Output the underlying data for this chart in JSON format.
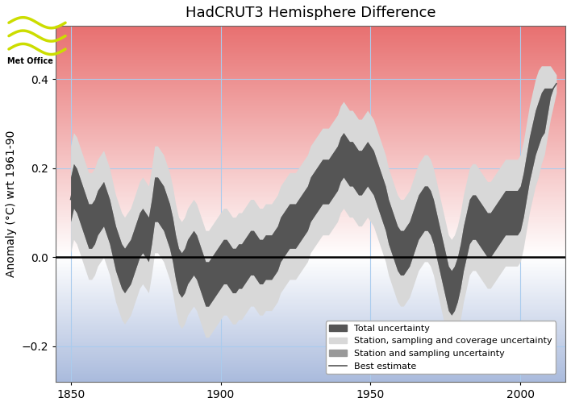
{
  "title": "HadCRUT3 Hemisphere Difference",
  "ylabel": "Anomaly (°C) wrt 1961-90",
  "xlim": [
    1845,
    2015
  ],
  "ylim": [
    -0.28,
    0.52
  ],
  "yticks": [
    -0.2,
    0.0,
    0.2,
    0.4
  ],
  "xticks": [
    1850,
    1900,
    1950,
    2000
  ],
  "grid_color": "#aaccee",
  "background_top_color": "#e87070",
  "background_bottom_color": "#aabbdd",
  "zero_line_color": "#000000",
  "best_estimate_color": "#555555",
  "total_uncertainty_color": "#555555",
  "ssc_color": "#d8d8d8",
  "ss_color": "#999999",
  "legend_labels": [
    "Total uncertainty",
    "Station, sampling and coverage uncertainty",
    "Station and sampling uncertainty",
    "Best estimate"
  ],
  "years": [
    1850,
    1851,
    1852,
    1853,
    1854,
    1855,
    1856,
    1857,
    1858,
    1859,
    1860,
    1861,
    1862,
    1863,
    1864,
    1865,
    1866,
    1867,
    1868,
    1869,
    1870,
    1871,
    1872,
    1873,
    1874,
    1875,
    1876,
    1877,
    1878,
    1879,
    1880,
    1881,
    1882,
    1883,
    1884,
    1885,
    1886,
    1887,
    1888,
    1889,
    1890,
    1891,
    1892,
    1893,
    1894,
    1895,
    1896,
    1897,
    1898,
    1899,
    1900,
    1901,
    1902,
    1903,
    1904,
    1905,
    1906,
    1907,
    1908,
    1909,
    1910,
    1911,
    1912,
    1913,
    1914,
    1915,
    1916,
    1917,
    1918,
    1919,
    1920,
    1921,
    1922,
    1923,
    1924,
    1925,
    1926,
    1927,
    1928,
    1929,
    1930,
    1931,
    1932,
    1933,
    1934,
    1935,
    1936,
    1937,
    1938,
    1939,
    1940,
    1941,
    1942,
    1943,
    1944,
    1945,
    1946,
    1947,
    1948,
    1949,
    1950,
    1951,
    1952,
    1953,
    1954,
    1955,
    1956,
    1957,
    1958,
    1959,
    1960,
    1961,
    1962,
    1963,
    1964,
    1965,
    1966,
    1967,
    1968,
    1969,
    1970,
    1971,
    1972,
    1973,
    1974,
    1975,
    1976,
    1977,
    1978,
    1979,
    1980,
    1981,
    1982,
    1983,
    1984,
    1985,
    1986,
    1987,
    1988,
    1989,
    1990,
    1991,
    1992,
    1993,
    1994,
    1995,
    1996,
    1997,
    1998,
    1999,
    2000,
    2001,
    2002,
    2003,
    2004,
    2005,
    2006,
    2007,
    2008,
    2009,
    2010,
    2011,
    2012
  ],
  "best_estimate": [
    0.13,
    0.16,
    0.15,
    0.13,
    0.11,
    0.09,
    0.07,
    0.07,
    0.08,
    0.1,
    0.11,
    0.12,
    0.1,
    0.08,
    0.05,
    0.02,
    0.0,
    -0.02,
    -0.03,
    -0.02,
    -0.01,
    0.01,
    0.03,
    0.05,
    0.06,
    0.05,
    0.04,
    0.08,
    0.13,
    0.13,
    0.12,
    0.11,
    0.09,
    0.07,
    0.04,
    0.0,
    -0.03,
    -0.04,
    -0.03,
    -0.01,
    0.0,
    0.01,
    0.0,
    -0.02,
    -0.04,
    -0.06,
    -0.06,
    -0.05,
    -0.04,
    -0.03,
    -0.02,
    -0.01,
    -0.01,
    -0.02,
    -0.03,
    -0.03,
    -0.02,
    -0.02,
    -0.01,
    0.0,
    0.01,
    0.01,
    0.0,
    -0.01,
    -0.01,
    0.0,
    0.0,
    0.0,
    0.01,
    0.02,
    0.04,
    0.05,
    0.06,
    0.07,
    0.07,
    0.07,
    0.08,
    0.09,
    0.1,
    0.11,
    0.13,
    0.14,
    0.15,
    0.16,
    0.17,
    0.17,
    0.17,
    0.18,
    0.19,
    0.2,
    0.22,
    0.23,
    0.22,
    0.21,
    0.21,
    0.2,
    0.19,
    0.19,
    0.2,
    0.21,
    0.2,
    0.19,
    0.17,
    0.15,
    0.13,
    0.11,
    0.08,
    0.06,
    0.04,
    0.02,
    0.01,
    0.01,
    0.02,
    0.03,
    0.05,
    0.07,
    0.09,
    0.1,
    0.11,
    0.11,
    0.1,
    0.08,
    0.05,
    0.02,
    -0.01,
    -0.04,
    -0.07,
    -0.08,
    -0.07,
    -0.05,
    -0.02,
    0.02,
    0.05,
    0.08,
    0.09,
    0.09,
    0.08,
    0.07,
    0.06,
    0.05,
    0.05,
    0.06,
    0.07,
    0.08,
    0.09,
    0.1,
    0.1,
    0.1,
    0.1,
    0.1,
    0.11,
    0.14,
    0.18,
    0.22,
    0.25,
    0.28,
    0.3,
    0.32,
    0.33,
    0.35,
    0.37,
    0.38,
    0.39
  ],
  "total_uncertainty_upper": [
    0.18,
    0.21,
    0.2,
    0.18,
    0.16,
    0.14,
    0.12,
    0.12,
    0.13,
    0.15,
    0.16,
    0.17,
    0.15,
    0.13,
    0.1,
    0.07,
    0.05,
    0.03,
    0.02,
    0.03,
    0.04,
    0.06,
    0.08,
    0.1,
    0.11,
    0.1,
    0.09,
    0.13,
    0.18,
    0.18,
    0.17,
    0.16,
    0.14,
    0.12,
    0.09,
    0.05,
    0.02,
    0.01,
    0.02,
    0.04,
    0.05,
    0.06,
    0.05,
    0.03,
    0.01,
    -0.01,
    -0.01,
    0.0,
    0.01,
    0.02,
    0.03,
    0.04,
    0.04,
    0.03,
    0.02,
    0.02,
    0.03,
    0.03,
    0.04,
    0.05,
    0.06,
    0.06,
    0.05,
    0.04,
    0.04,
    0.05,
    0.05,
    0.05,
    0.06,
    0.07,
    0.09,
    0.1,
    0.11,
    0.12,
    0.12,
    0.12,
    0.13,
    0.14,
    0.15,
    0.16,
    0.18,
    0.19,
    0.2,
    0.21,
    0.22,
    0.22,
    0.22,
    0.23,
    0.24,
    0.25,
    0.27,
    0.28,
    0.27,
    0.26,
    0.26,
    0.25,
    0.24,
    0.24,
    0.25,
    0.26,
    0.25,
    0.24,
    0.22,
    0.2,
    0.18,
    0.16,
    0.13,
    0.11,
    0.09,
    0.07,
    0.06,
    0.06,
    0.07,
    0.08,
    0.1,
    0.12,
    0.14,
    0.15,
    0.16,
    0.16,
    0.15,
    0.13,
    0.1,
    0.07,
    0.04,
    0.01,
    -0.02,
    -0.03,
    -0.02,
    0.0,
    0.03,
    0.07,
    0.1,
    0.13,
    0.14,
    0.14,
    0.13,
    0.12,
    0.11,
    0.1,
    0.1,
    0.11,
    0.12,
    0.13,
    0.14,
    0.15,
    0.15,
    0.15,
    0.15,
    0.15,
    0.16,
    0.19,
    0.23,
    0.27,
    0.3,
    0.33,
    0.35,
    0.37,
    0.38,
    0.38,
    0.38,
    0.38,
    0.39
  ],
  "total_uncertainty_lower": [
    0.08,
    0.11,
    0.1,
    0.08,
    0.06,
    0.04,
    0.02,
    0.02,
    0.03,
    0.05,
    0.06,
    0.07,
    0.05,
    0.03,
    0.0,
    -0.03,
    -0.05,
    -0.07,
    -0.08,
    -0.07,
    -0.06,
    -0.04,
    -0.02,
    0.0,
    0.01,
    0.0,
    -0.01,
    0.03,
    0.08,
    0.08,
    0.07,
    0.06,
    0.04,
    0.02,
    -0.01,
    -0.05,
    -0.08,
    -0.09,
    -0.08,
    -0.06,
    -0.05,
    -0.04,
    -0.05,
    -0.07,
    -0.09,
    -0.11,
    -0.11,
    -0.1,
    -0.09,
    -0.08,
    -0.07,
    -0.06,
    -0.06,
    -0.07,
    -0.08,
    -0.08,
    -0.07,
    -0.07,
    -0.06,
    -0.05,
    -0.04,
    -0.04,
    -0.05,
    -0.06,
    -0.06,
    -0.05,
    -0.05,
    -0.05,
    -0.04,
    -0.03,
    -0.01,
    0.0,
    0.01,
    0.02,
    0.02,
    0.02,
    0.03,
    0.04,
    0.05,
    0.06,
    0.08,
    0.09,
    0.1,
    0.11,
    0.12,
    0.12,
    0.12,
    0.13,
    0.14,
    0.15,
    0.17,
    0.18,
    0.17,
    0.16,
    0.16,
    0.15,
    0.14,
    0.14,
    0.15,
    0.16,
    0.15,
    0.14,
    0.12,
    0.1,
    0.08,
    0.06,
    0.03,
    0.01,
    -0.01,
    -0.03,
    -0.04,
    -0.04,
    -0.03,
    -0.02,
    0.0,
    0.02,
    0.04,
    0.05,
    0.06,
    0.06,
    0.05,
    0.03,
    0.0,
    -0.03,
    -0.06,
    -0.09,
    -0.12,
    -0.13,
    -0.12,
    -0.1,
    -0.07,
    -0.03,
    0.0,
    0.03,
    0.04,
    0.04,
    0.03,
    0.02,
    0.01,
    0.0,
    0.0,
    0.01,
    0.02,
    0.03,
    0.04,
    0.05,
    0.05,
    0.05,
    0.05,
    0.05,
    0.06,
    0.09,
    0.13,
    0.17,
    0.2,
    0.23,
    0.25,
    0.27,
    0.28,
    0.32,
    0.36,
    0.38,
    0.39
  ],
  "ssc_upper": [
    0.25,
    0.28,
    0.27,
    0.25,
    0.23,
    0.21,
    0.19,
    0.19,
    0.2,
    0.22,
    0.23,
    0.24,
    0.22,
    0.2,
    0.17,
    0.14,
    0.12,
    0.1,
    0.09,
    0.1,
    0.11,
    0.13,
    0.15,
    0.17,
    0.18,
    0.17,
    0.16,
    0.2,
    0.25,
    0.25,
    0.24,
    0.23,
    0.21,
    0.19,
    0.16,
    0.12,
    0.09,
    0.08,
    0.09,
    0.11,
    0.12,
    0.13,
    0.12,
    0.1,
    0.08,
    0.06,
    0.06,
    0.07,
    0.08,
    0.09,
    0.1,
    0.11,
    0.11,
    0.1,
    0.09,
    0.09,
    0.1,
    0.1,
    0.11,
    0.12,
    0.13,
    0.13,
    0.12,
    0.11,
    0.11,
    0.12,
    0.12,
    0.12,
    0.13,
    0.14,
    0.16,
    0.17,
    0.18,
    0.19,
    0.19,
    0.19,
    0.2,
    0.21,
    0.22,
    0.23,
    0.25,
    0.26,
    0.27,
    0.28,
    0.29,
    0.29,
    0.29,
    0.3,
    0.31,
    0.32,
    0.34,
    0.35,
    0.34,
    0.33,
    0.33,
    0.32,
    0.31,
    0.31,
    0.32,
    0.33,
    0.32,
    0.31,
    0.29,
    0.27,
    0.25,
    0.23,
    0.2,
    0.18,
    0.16,
    0.14,
    0.13,
    0.13,
    0.14,
    0.15,
    0.17,
    0.19,
    0.21,
    0.22,
    0.23,
    0.23,
    0.22,
    0.2,
    0.17,
    0.14,
    0.11,
    0.08,
    0.05,
    0.04,
    0.05,
    0.07,
    0.1,
    0.14,
    0.17,
    0.2,
    0.21,
    0.21,
    0.2,
    0.19,
    0.18,
    0.17,
    0.17,
    0.18,
    0.19,
    0.2,
    0.21,
    0.22,
    0.22,
    0.22,
    0.22,
    0.22,
    0.23,
    0.26,
    0.3,
    0.34,
    0.37,
    0.4,
    0.42,
    0.43,
    0.43,
    0.43,
    0.43,
    0.42,
    0.41
  ],
  "ssc_lower": [
    0.01,
    0.04,
    0.03,
    0.01,
    -0.01,
    -0.03,
    -0.05,
    -0.05,
    -0.04,
    -0.02,
    -0.01,
    0.0,
    -0.02,
    -0.04,
    -0.07,
    -0.1,
    -0.12,
    -0.14,
    -0.15,
    -0.14,
    -0.13,
    -0.11,
    -0.09,
    -0.07,
    -0.06,
    -0.07,
    -0.08,
    -0.04,
    0.01,
    0.01,
    0.0,
    -0.01,
    -0.03,
    -0.05,
    -0.08,
    -0.12,
    -0.15,
    -0.16,
    -0.15,
    -0.13,
    -0.12,
    -0.11,
    -0.12,
    -0.14,
    -0.16,
    -0.18,
    -0.18,
    -0.17,
    -0.16,
    -0.15,
    -0.14,
    -0.13,
    -0.13,
    -0.14,
    -0.15,
    -0.15,
    -0.14,
    -0.14,
    -0.13,
    -0.12,
    -0.11,
    -0.11,
    -0.12,
    -0.13,
    -0.13,
    -0.12,
    -0.12,
    -0.12,
    -0.11,
    -0.1,
    -0.08,
    -0.07,
    -0.06,
    -0.05,
    -0.05,
    -0.05,
    -0.04,
    -0.03,
    -0.02,
    -0.01,
    0.01,
    0.02,
    0.03,
    0.04,
    0.05,
    0.05,
    0.05,
    0.06,
    0.07,
    0.08,
    0.1,
    0.11,
    0.1,
    0.09,
    0.09,
    0.08,
    0.07,
    0.07,
    0.08,
    0.09,
    0.08,
    0.07,
    0.05,
    0.03,
    0.01,
    -0.01,
    -0.04,
    -0.06,
    -0.08,
    -0.1,
    -0.11,
    -0.11,
    -0.1,
    -0.09,
    -0.07,
    -0.05,
    -0.03,
    -0.02,
    -0.01,
    -0.01,
    -0.02,
    -0.04,
    -0.07,
    -0.1,
    -0.13,
    -0.16,
    -0.19,
    -0.2,
    -0.19,
    -0.17,
    -0.14,
    -0.1,
    -0.07,
    -0.04,
    -0.03,
    -0.03,
    -0.04,
    -0.05,
    -0.06,
    -0.07,
    -0.07,
    -0.06,
    -0.05,
    -0.04,
    -0.03,
    -0.02,
    -0.02,
    -0.02,
    -0.02,
    -0.02,
    -0.01,
    0.02,
    0.06,
    0.1,
    0.13,
    0.16,
    0.18,
    0.21,
    0.23,
    0.27,
    0.31,
    0.34,
    0.37
  ],
  "ss_upper": [
    0.18,
    0.21,
    0.2,
    0.18,
    0.16,
    0.14,
    0.12,
    0.12,
    0.13,
    0.15,
    0.16,
    0.17,
    0.15,
    0.13,
    0.1,
    0.07,
    0.05,
    0.03,
    0.02,
    0.03,
    0.04,
    0.06,
    0.08,
    0.1,
    0.11,
    0.1,
    0.09,
    0.13,
    0.18,
    0.18,
    0.17,
    0.16,
    0.14,
    0.12,
    0.09,
    0.05,
    0.02,
    0.01,
    0.02,
    0.04,
    0.05,
    0.06,
    0.05,
    0.03,
    0.01,
    -0.01,
    -0.01,
    0.0,
    0.01,
    0.02,
    0.03,
    0.04,
    0.04,
    0.03,
    0.02,
    0.02,
    0.03,
    0.03,
    0.04,
    0.05,
    0.06,
    0.06,
    0.05,
    0.04,
    0.04,
    0.05,
    0.05,
    0.05,
    0.06,
    0.07,
    0.09,
    0.1,
    0.11,
    0.12,
    0.12,
    0.12,
    0.13,
    0.14,
    0.15,
    0.16,
    0.18,
    0.19,
    0.2,
    0.21,
    0.22,
    0.22,
    0.22,
    0.23,
    0.24,
    0.25,
    0.27,
    0.28,
    0.27,
    0.26,
    0.26,
    0.25,
    0.24,
    0.24,
    0.25,
    0.26,
    0.25,
    0.24,
    0.22,
    0.2,
    0.18,
    0.16,
    0.13,
    0.11,
    0.09,
    0.07,
    0.06,
    0.06,
    0.07,
    0.08,
    0.1,
    0.12,
    0.14,
    0.15,
    0.16,
    0.16,
    0.15,
    0.13,
    0.1,
    0.07,
    0.04,
    0.01,
    -0.02,
    -0.03,
    -0.02,
    0.0,
    0.03,
    0.07,
    0.1,
    0.13,
    0.14,
    0.14,
    0.13,
    0.12,
    0.11,
    0.1,
    0.1,
    0.11,
    0.12,
    0.13,
    0.14,
    0.15,
    0.15,
    0.15,
    0.15,
    0.15,
    0.16,
    0.19,
    0.23,
    0.27,
    0.3,
    0.33,
    0.35,
    0.37,
    0.38,
    0.38,
    0.38,
    0.38,
    0.39
  ],
  "ss_lower": [
    0.08,
    0.11,
    0.1,
    0.08,
    0.06,
    0.04,
    0.02,
    0.02,
    0.03,
    0.05,
    0.06,
    0.07,
    0.05,
    0.03,
    0.0,
    -0.03,
    -0.05,
    -0.07,
    -0.08,
    -0.07,
    -0.06,
    -0.04,
    -0.02,
    0.0,
    0.01,
    0.0,
    -0.01,
    0.03,
    0.08,
    0.08,
    0.07,
    0.06,
    0.04,
    0.02,
    -0.01,
    -0.05,
    -0.08,
    -0.09,
    -0.08,
    -0.06,
    -0.05,
    -0.04,
    -0.05,
    -0.07,
    -0.09,
    -0.11,
    -0.11,
    -0.1,
    -0.09,
    -0.08,
    -0.07,
    -0.06,
    -0.06,
    -0.07,
    -0.08,
    -0.08,
    -0.07,
    -0.07,
    -0.06,
    -0.05,
    -0.04,
    -0.04,
    -0.05,
    -0.06,
    -0.06,
    -0.05,
    -0.05,
    -0.05,
    -0.04,
    -0.03,
    -0.01,
    0.0,
    0.01,
    0.02,
    0.02,
    0.02,
    0.03,
    0.04,
    0.05,
    0.06,
    0.08,
    0.09,
    0.1,
    0.11,
    0.12,
    0.12,
    0.12,
    0.13,
    0.14,
    0.15,
    0.17,
    0.18,
    0.17,
    0.16,
    0.16,
    0.15,
    0.14,
    0.14,
    0.15,
    0.16,
    0.15,
    0.14,
    0.12,
    0.1,
    0.08,
    0.06,
    0.03,
    0.01,
    -0.01,
    -0.03,
    -0.04,
    -0.04,
    -0.03,
    -0.02,
    0.0,
    0.02,
    0.04,
    0.05,
    0.06,
    0.06,
    0.05,
    0.03,
    0.0,
    -0.03,
    -0.06,
    -0.09,
    -0.12,
    -0.13,
    -0.12,
    -0.1,
    -0.07,
    -0.03,
    0.0,
    0.03,
    0.04,
    0.04,
    0.03,
    0.02,
    0.01,
    0.0,
    0.0,
    0.01,
    0.02,
    0.03,
    0.04,
    0.05,
    0.05,
    0.05,
    0.05,
    0.05,
    0.06,
    0.09,
    0.13,
    0.17,
    0.2,
    0.23,
    0.25,
    0.27,
    0.28,
    0.32,
    0.36,
    0.38,
    0.39
  ]
}
